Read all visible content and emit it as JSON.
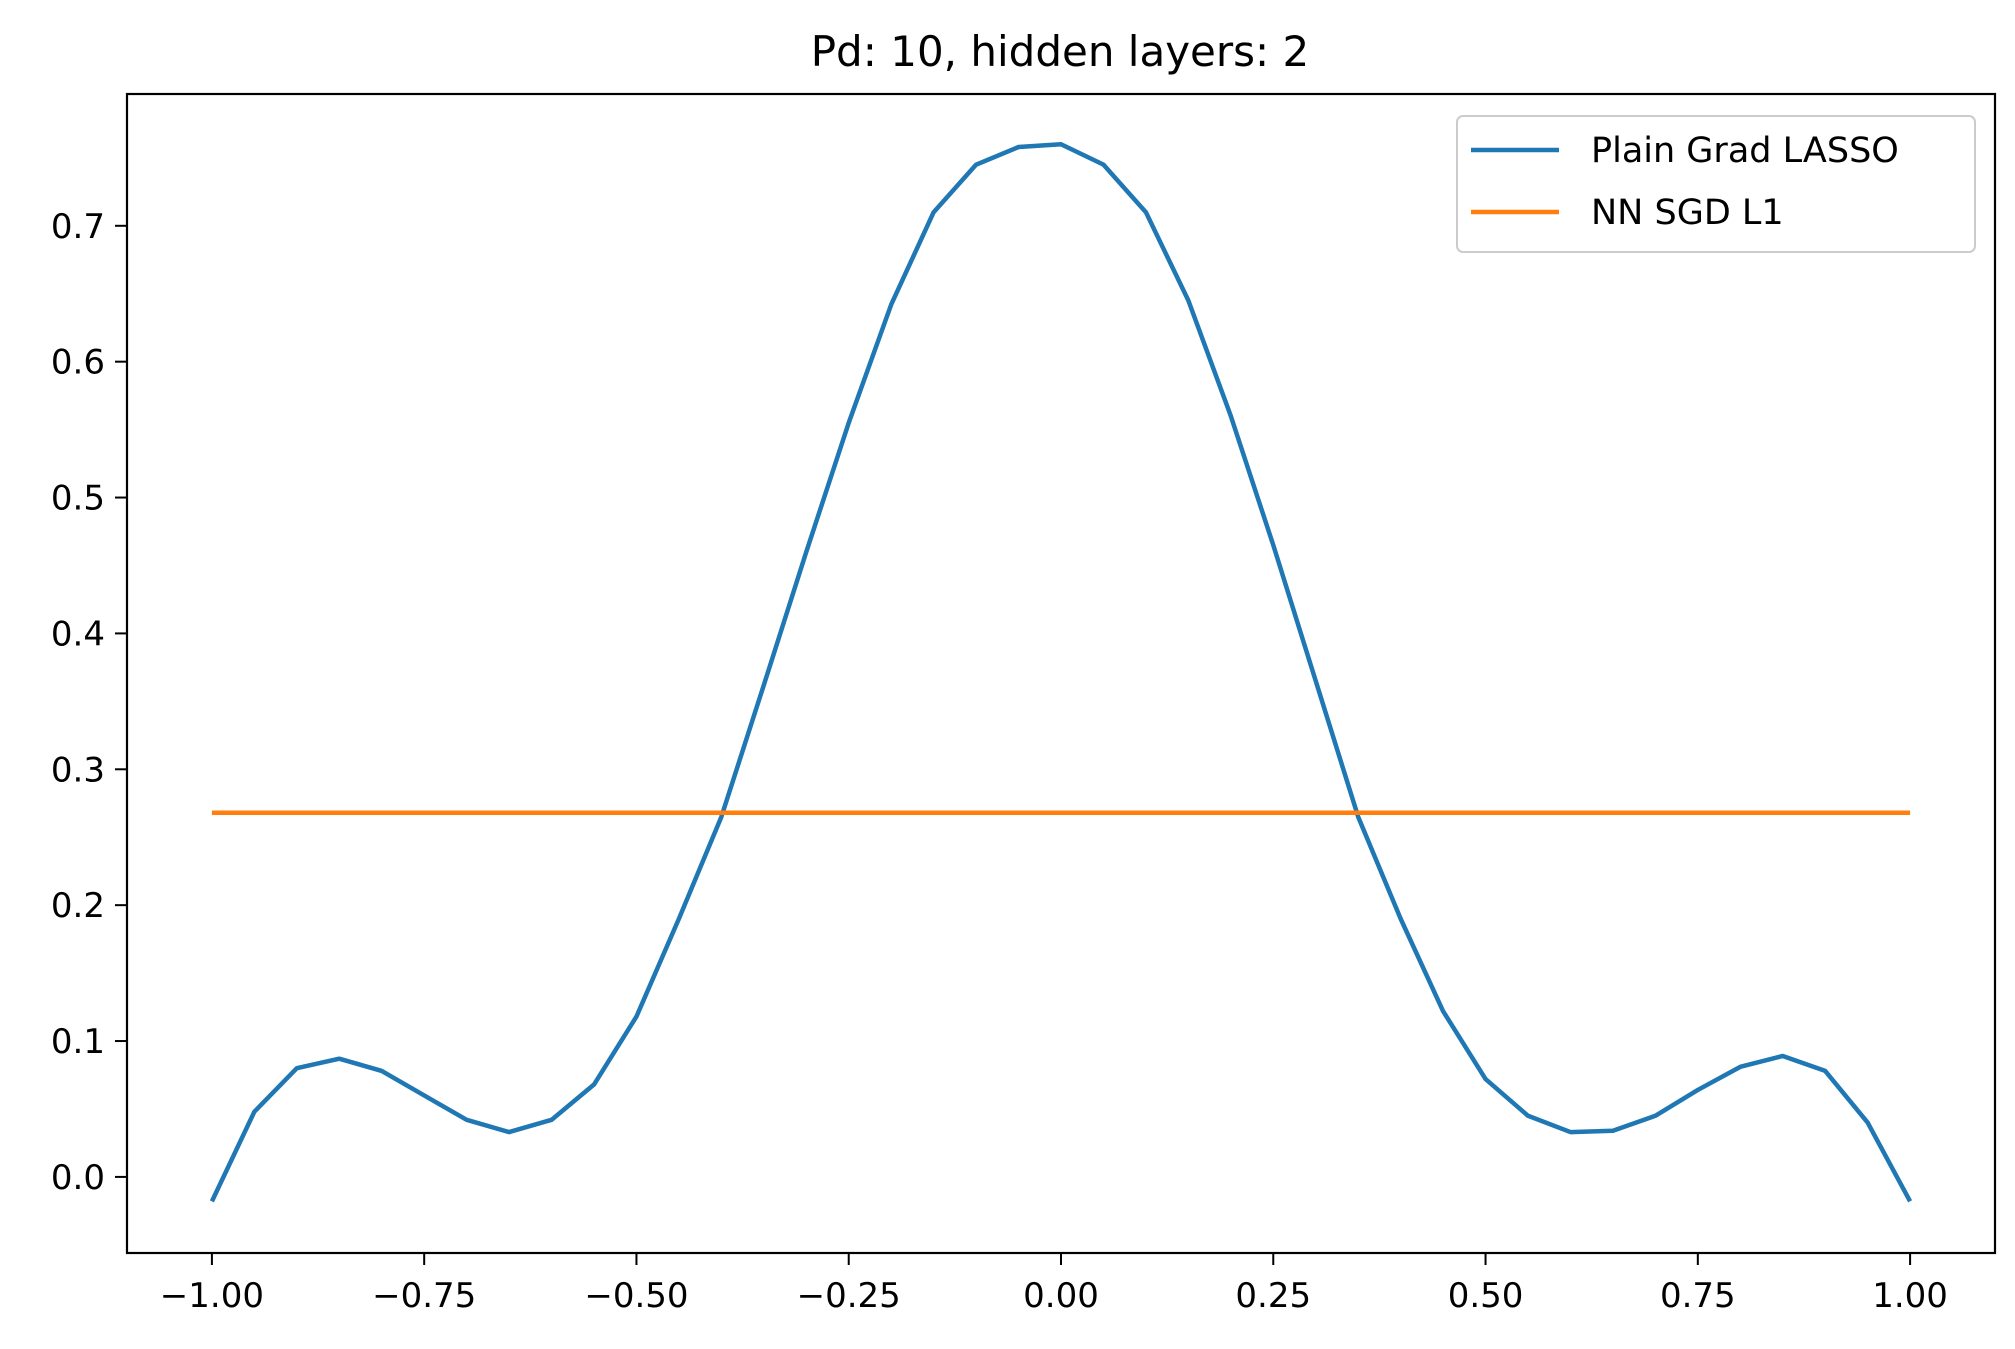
{
  "chart_data": {
    "type": "line",
    "title": "Pd: 10, hidden layers: 2",
    "xlabel": "",
    "ylabel": "",
    "xlim": [
      -1.1,
      1.1
    ],
    "ylim": [
      -0.056,
      0.797
    ],
    "grid": false,
    "legend_position": "top-right",
    "x_ticks": [
      -1.0,
      -0.75,
      -0.5,
      -0.25,
      0.0,
      0.25,
      0.5,
      0.75,
      1.0
    ],
    "x_tick_labels": [
      "−1.00",
      "−0.75",
      "−0.50",
      "−0.25",
      "0.00",
      "0.25",
      "0.50",
      "0.75",
      "1.00"
    ],
    "y_ticks": [
      0.0,
      0.1,
      0.2,
      0.3,
      0.4,
      0.5,
      0.6,
      0.7
    ],
    "y_tick_labels": [
      "0.0",
      "0.1",
      "0.2",
      "0.3",
      "0.4",
      "0.5",
      "0.6",
      "0.7"
    ],
    "series": [
      {
        "name": "Plain Grad LASSO",
        "color": "#1f77b4",
        "x": [
          -1.0,
          -0.95,
          -0.9,
          -0.85,
          -0.8,
          -0.75,
          -0.7,
          -0.65,
          -0.6,
          -0.55,
          -0.5,
          -0.45,
          -0.4,
          -0.35,
          -0.3,
          -0.25,
          -0.2,
          -0.15,
          -0.1,
          -0.05,
          0.0,
          0.05,
          0.1,
          0.15,
          0.2,
          0.25,
          0.3,
          0.35,
          0.4,
          0.45,
          0.5,
          0.55,
          0.6,
          0.65,
          0.7,
          0.75,
          0.8,
          0.85,
          0.9,
          0.95,
          1.0
        ],
        "values": [
          -0.018,
          0.048,
          0.08,
          0.087,
          0.078,
          0.06,
          0.042,
          0.033,
          0.042,
          0.068,
          0.118,
          0.19,
          0.265,
          0.362,
          0.46,
          0.555,
          0.642,
          0.71,
          0.745,
          0.758,
          0.76,
          0.745,
          0.71,
          0.645,
          0.56,
          0.465,
          0.365,
          0.265,
          0.19,
          0.122,
          0.072,
          0.045,
          0.033,
          0.034,
          0.045,
          0.064,
          0.081,
          0.089,
          0.078,
          0.04,
          -0.018
        ]
      },
      {
        "name": "NN SGD L1",
        "color": "#ff7f0e",
        "x": [
          -1.0,
          1.0
        ],
        "values": [
          0.268,
          0.268
        ]
      }
    ]
  }
}
